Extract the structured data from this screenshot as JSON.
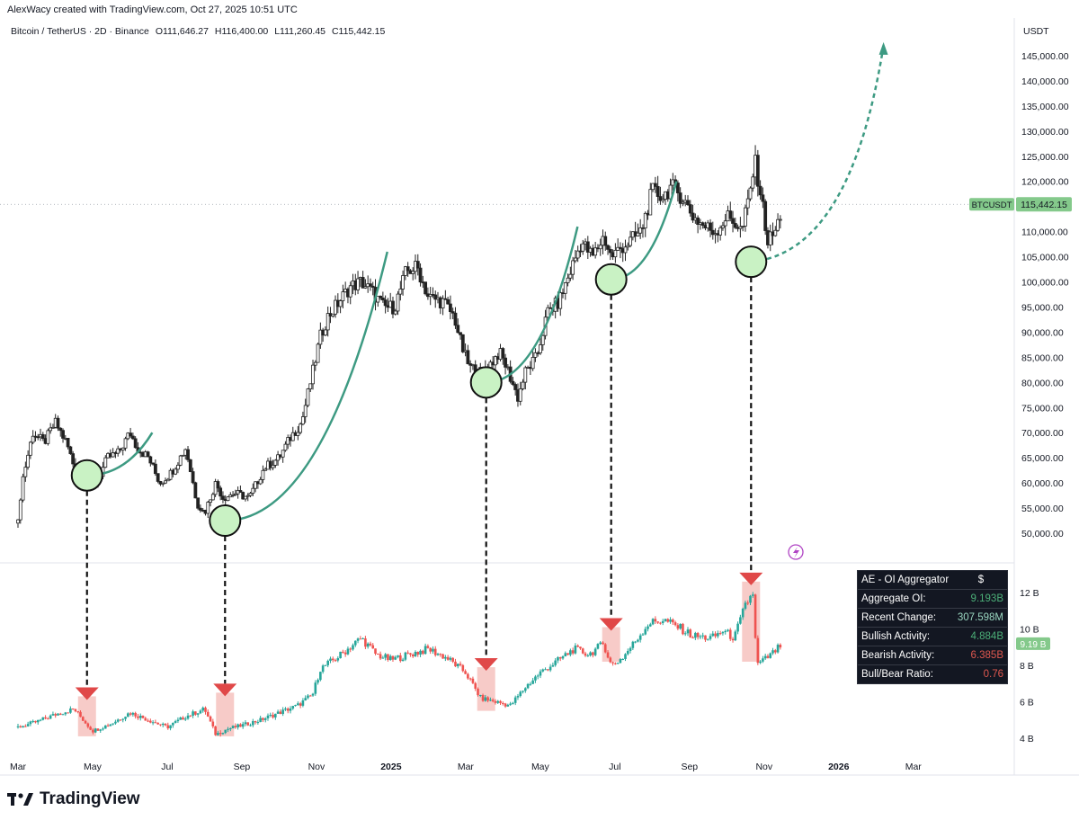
{
  "header": {
    "credit": "AlexWacy created with TradingView.com, Oct 27, 2025 10:51 UTC",
    "symbol": "Bitcoin / TetherUS · 2D · Binance",
    "open": "O111,646.27",
    "high": "H116,400.00",
    "low": "L111,260.45",
    "close": "C115,442.15"
  },
  "price_axis": {
    "currency": "USDT",
    "ticks": [
      "145,000.00",
      "140,000.00",
      "135,000.00",
      "130,000.00",
      "125,000.00",
      "120,000.00",
      "115,000.00",
      "110,000.00",
      "105,000.00",
      "100,000.00",
      "95,000.00",
      "90,000.00",
      "85,000.00",
      "80,000.00",
      "75,000.00",
      "70,000.00",
      "65,000.00",
      "60,000.00",
      "55,000.00",
      "50,000.00"
    ],
    "last_label": "BTCUSDT",
    "last_value": "115,442.15"
  },
  "oi_axis": {
    "ticks": [
      "12 B",
      "10 B",
      "8 B",
      "6 B",
      "4 B"
    ],
    "last_value": "9.19 B"
  },
  "time_axis": {
    "labels": [
      "Mar",
      "May",
      "Jul",
      "Sep",
      "Nov",
      "2025",
      "Mar",
      "May",
      "Jul",
      "Sep",
      "Nov",
      "2026",
      "Mar"
    ]
  },
  "oi_table": {
    "title": "AE - OI Aggregator",
    "currency": "$",
    "rows": [
      {
        "label": "Aggregate OI:",
        "value": "9.193B",
        "tone": "pos"
      },
      {
        "label": "Recent Change:",
        "value": "307.598M",
        "tone": "neu"
      },
      {
        "label": "Bullish Activity:",
        "value": "4.884B",
        "tone": "pos"
      },
      {
        "label": "Bearish Activity:",
        "value": "6.385B",
        "tone": "neg"
      },
      {
        "label": "Bull/Bear Ratio:",
        "value": "0.76",
        "tone": "neg"
      }
    ]
  },
  "logo": {
    "text": "TradingView"
  },
  "colors": {
    "up": "#26a69a",
    "down": "#ef5350",
    "price_candle": "#222222",
    "curve": "#3d9a82",
    "circle_fill": "#c9f2c4",
    "marker": "#e04848",
    "zone": "#f4b9b6",
    "badge": "#84c98b"
  },
  "chart_data": {
    "type": "candlestick",
    "title": "Bitcoin / TetherUS · 2D · Binance",
    "ylabel": "USDT",
    "ylim": [
      47000,
      148000
    ],
    "oi_ylim": [
      3.5,
      13.5
    ],
    "x_range_months": [
      0,
      25.5
    ],
    "price_path": [
      [
        0.0,
        52000
      ],
      [
        0.1,
        60000
      ],
      [
        0.4,
        70000
      ],
      [
        0.7,
        68000
      ],
      [
        1.0,
        72000
      ],
      [
        1.3,
        68000
      ],
      [
        1.6,
        61000
      ],
      [
        1.8,
        64000
      ],
      [
        2.1,
        60000
      ],
      [
        2.4,
        65000
      ],
      [
        2.7,
        66000
      ],
      [
        3.0,
        70000
      ],
      [
        3.2,
        67000
      ],
      [
        3.5,
        65000
      ],
      [
        3.8,
        60000
      ],
      [
        4.1,
        62000
      ],
      [
        4.5,
        67000
      ],
      [
        4.8,
        56000
      ],
      [
        5.0,
        54000
      ],
      [
        5.3,
        60000
      ],
      [
        5.5,
        57000
      ],
      [
        5.8,
        58000
      ],
      [
        6.2,
        57000
      ],
      [
        6.6,
        63000
      ],
      [
        7.0,
        65000
      ],
      [
        7.3,
        69000
      ],
      [
        7.6,
        72000
      ],
      [
        7.9,
        82000
      ],
      [
        8.1,
        89000
      ],
      [
        8.3,
        93000
      ],
      [
        8.6,
        96000
      ],
      [
        8.9,
        99000
      ],
      [
        9.2,
        100000
      ],
      [
        9.5,
        98000
      ],
      [
        9.8,
        95000
      ],
      [
        10.1,
        95000
      ],
      [
        10.4,
        102000
      ],
      [
        10.7,
        103000
      ],
      [
        11.0,
        97000
      ],
      [
        11.4,
        96000
      ],
      [
        11.7,
        93000
      ],
      [
        11.9,
        87000
      ],
      [
        12.1,
        83000
      ],
      [
        12.4,
        82000
      ],
      [
        12.7,
        84000
      ],
      [
        12.9,
        86000
      ],
      [
        13.1,
        83000
      ],
      [
        13.4,
        77000
      ],
      [
        13.6,
        82000
      ],
      [
        13.9,
        85000
      ],
      [
        14.2,
        94000
      ],
      [
        14.5,
        96000
      ],
      [
        14.8,
        102000
      ],
      [
        15.1,
        108000
      ],
      [
        15.4,
        105000
      ],
      [
        15.7,
        109000
      ],
      [
        15.9,
        105000
      ],
      [
        16.2,
        107000
      ],
      [
        16.4,
        108000
      ],
      [
        16.7,
        110000
      ],
      [
        17.0,
        118000
      ],
      [
        17.3,
        117000
      ],
      [
        17.5,
        119000
      ],
      [
        17.8,
        117000
      ],
      [
        18.1,
        113000
      ],
      [
        18.4,
        111000
      ],
      [
        18.7,
        110000
      ],
      [
        19.0,
        113000
      ],
      [
        19.2,
        112000
      ],
      [
        19.4,
        110000
      ],
      [
        19.6,
        117000
      ],
      [
        19.75,
        124000
      ],
      [
        19.9,
        118000
      ],
      [
        20.1,
        108000
      ],
      [
        20.3,
        110000
      ],
      [
        20.5,
        115000
      ]
    ],
    "oi_path": [
      [
        0.0,
        4.6
      ],
      [
        0.5,
        4.9
      ],
      [
        1.0,
        5.3
      ],
      [
        1.5,
        5.6
      ],
      [
        2.0,
        4.4
      ],
      [
        2.5,
        4.8
      ],
      [
        3.0,
        5.4
      ],
      [
        3.5,
        5.0
      ],
      [
        4.0,
        4.6
      ],
      [
        4.5,
        5.2
      ],
      [
        5.0,
        5.6
      ],
      [
        5.3,
        4.2
      ],
      [
        5.6,
        4.5
      ],
      [
        6.0,
        4.7
      ],
      [
        6.5,
        5.0
      ],
      [
        7.0,
        5.4
      ],
      [
        7.5,
        5.8
      ],
      [
        7.9,
        6.4
      ],
      [
        8.1,
        7.8
      ],
      [
        8.6,
        8.5
      ],
      [
        9.2,
        9.5
      ],
      [
        9.6,
        8.6
      ],
      [
        10.0,
        8.3
      ],
      [
        10.5,
        8.6
      ],
      [
        11.0,
        8.9
      ],
      [
        11.5,
        8.4
      ],
      [
        12.0,
        7.6
      ],
      [
        12.4,
        6.2
      ],
      [
        12.8,
        6.0
      ],
      [
        13.2,
        5.8
      ],
      [
        13.6,
        6.8
      ],
      [
        14.0,
        7.6
      ],
      [
        14.5,
        8.3
      ],
      [
        14.9,
        8.9
      ],
      [
        15.3,
        8.6
      ],
      [
        15.7,
        9.2
      ],
      [
        15.9,
        8.0
      ],
      [
        16.2,
        8.4
      ],
      [
        16.5,
        9.2
      ],
      [
        16.9,
        10.3
      ],
      [
        17.3,
        10.5
      ],
      [
        17.7,
        10.1
      ],
      [
        18.1,
        9.6
      ],
      [
        18.6,
        9.5
      ],
      [
        18.9,
        9.9
      ],
      [
        19.2,
        9.5
      ],
      [
        19.5,
        11.3
      ],
      [
        19.7,
        12.0
      ],
      [
        19.8,
        8.0
      ],
      [
        20.2,
        8.6
      ],
      [
        20.5,
        9.19
      ]
    ],
    "circles": [
      {
        "month": 1.85,
        "price": 61500
      },
      {
        "month": 5.55,
        "price": 52500
      },
      {
        "month": 12.55,
        "price": 80000
      },
      {
        "month": 15.9,
        "price": 100500
      },
      {
        "month": 19.65,
        "price": 104000
      }
    ],
    "curves": [
      {
        "from": [
          1.85,
          61500
        ],
        "to": [
          3.6,
          70000
        ]
      },
      {
        "from": [
          5.55,
          52500
        ],
        "to": [
          9.9,
          106000
        ]
      },
      {
        "from": [
          12.55,
          80000
        ],
        "to": [
          15.0,
          111000
        ]
      },
      {
        "from": [
          15.9,
          100500
        ],
        "to": [
          17.65,
          120000
        ]
      }
    ],
    "projection": {
      "from": [
        19.65,
        104000
      ],
      "to": [
        23.2,
        147000
      ]
    },
    "markers": [
      {
        "month": 1.85,
        "oi": 6.2,
        "zone_low": 4.2
      },
      {
        "month": 5.55,
        "oi": 6.4,
        "zone_low": 4.2
      },
      {
        "month": 12.55,
        "oi": 7.8,
        "zone_low": 5.6
      },
      {
        "month": 15.9,
        "oi": 10.0,
        "zone_low": 8.3
      },
      {
        "month": 19.65,
        "oi": 12.5,
        "zone_low": 8.3
      }
    ]
  }
}
